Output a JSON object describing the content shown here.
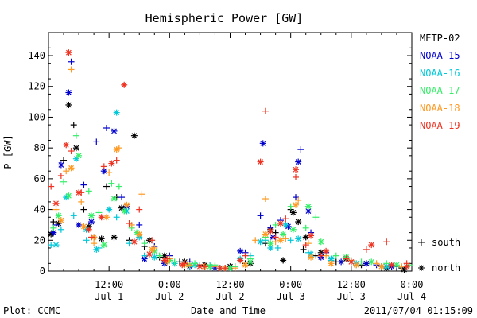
{
  "chart_data": {
    "type": "scatter",
    "title": "Hemispheric Power [GW]",
    "ylabel": "P [GW]",
    "xlabel": "Date and Time",
    "ylim": [
      0,
      155
    ],
    "xlim": [
      "2011-07-01T00:00",
      "2011-07-04T00:00"
    ],
    "yticks": [
      0,
      20,
      40,
      60,
      80,
      100,
      120,
      140
    ],
    "xticks": [
      {
        "time": "12:00",
        "date": "Jul 1"
      },
      {
        "time": "0:00",
        "date": "Jul 2"
      },
      {
        "time": "12:00",
        "date": "Jul 2"
      },
      {
        "time": "0:00",
        "date": "Jul 3"
      },
      {
        "time": "12:00",
        "date": "Jul 3"
      },
      {
        "time": "0:00",
        "date": "Jul 4"
      }
    ],
    "legend": {
      "placement": "right"
    },
    "hemisphere_legend": [
      {
        "symbol": "+",
        "label": "south"
      },
      {
        "symbol": "*",
        "label": "north"
      }
    ],
    "series": [
      {
        "name": "METP-02",
        "color": "#000000",
        "south": [
          [
            2,
            32
          ],
          [
            6,
            72
          ],
          [
            10,
            95
          ],
          [
            14,
            40
          ],
          [
            18,
            22
          ],
          [
            23,
            55
          ],
          [
            27,
            48
          ],
          [
            32,
            20
          ],
          [
            38,
            16
          ],
          [
            44,
            9
          ],
          [
            52,
            6
          ],
          [
            60,
            4
          ],
          [
            70,
            2
          ],
          [
            78,
            5
          ],
          [
            86,
            18
          ],
          [
            90,
            25
          ],
          [
            96,
            40
          ],
          [
            101,
            14
          ],
          [
            106,
            10
          ],
          [
            114,
            6
          ],
          [
            124,
            4
          ],
          [
            132,
            3
          ],
          [
            140,
            2
          ]
        ],
        "north": [
          [
            1,
            24
          ],
          [
            4,
            31
          ],
          [
            8,
            108
          ],
          [
            11,
            80
          ],
          [
            16,
            29
          ],
          [
            21,
            21
          ],
          [
            26,
            22
          ],
          [
            29,
            41
          ],
          [
            34,
            88
          ],
          [
            40,
            20
          ],
          [
            46,
            10
          ],
          [
            54,
            6
          ],
          [
            62,
            4
          ],
          [
            72,
            3
          ],
          [
            80,
            5
          ],
          [
            88,
            27
          ],
          [
            93,
            7
          ],
          [
            97,
            38
          ],
          [
            99,
            32
          ],
          [
            102,
            22
          ],
          [
            108,
            12
          ],
          [
            118,
            8
          ],
          [
            126,
            5
          ],
          [
            134,
            2
          ],
          [
            141,
            1
          ]
        ]
      },
      {
        "name": "NOAA-15",
        "color": "#0000cc",
        "south": [
          [
            3,
            30
          ],
          [
            9,
            136
          ],
          [
            14,
            56
          ],
          [
            19,
            84
          ],
          [
            23,
            93
          ],
          [
            29,
            48
          ],
          [
            36,
            30
          ],
          [
            42,
            16
          ],
          [
            48,
            10
          ],
          [
            56,
            6
          ],
          [
            64,
            3
          ],
          [
            72,
            2
          ],
          [
            78,
            12
          ],
          [
            84,
            36
          ],
          [
            88,
            28
          ],
          [
            92,
            33
          ],
          [
            98,
            48
          ],
          [
            100,
            79
          ],
          [
            104,
            25
          ],
          [
            110,
            12
          ],
          [
            120,
            6
          ],
          [
            130,
            4
          ],
          [
            138,
            3
          ]
        ],
        "north": [
          [
            2,
            25
          ],
          [
            5,
            69
          ],
          [
            8,
            116
          ],
          [
            12,
            30
          ],
          [
            17,
            32
          ],
          [
            22,
            65
          ],
          [
            26,
            91
          ],
          [
            31,
            42
          ],
          [
            38,
            8
          ],
          [
            46,
            5
          ],
          [
            56,
            3
          ],
          [
            66,
            2
          ],
          [
            76,
            13
          ],
          [
            85,
            83
          ],
          [
            89,
            22
          ],
          [
            95,
            29
          ],
          [
            99,
            71
          ],
          [
            103,
            39
          ],
          [
            108,
            9
          ],
          [
            116,
            6
          ],
          [
            126,
            5
          ],
          [
            136,
            3
          ]
        ]
      },
      {
        "name": "NOAA-16",
        "color": "#00c8d8",
        "south": [
          [
            1,
            17
          ],
          [
            5,
            27
          ],
          [
            10,
            36
          ],
          [
            15,
            20
          ],
          [
            20,
            15
          ],
          [
            27,
            35
          ],
          [
            32,
            18
          ],
          [
            38,
            10
          ],
          [
            46,
            6
          ],
          [
            56,
            3
          ],
          [
            64,
            4
          ],
          [
            74,
            3
          ],
          [
            80,
            10
          ],
          [
            86,
            20
          ],
          [
            91,
            15
          ],
          [
            96,
            20
          ],
          [
            103,
            12
          ],
          [
            112,
            7
          ],
          [
            122,
            4
          ],
          [
            132,
            3
          ],
          [
            142,
            3
          ]
        ],
        "north": [
          [
            3,
            17
          ],
          [
            7,
            48
          ],
          [
            11,
            73
          ],
          [
            15,
            27
          ],
          [
            19,
            14
          ],
          [
            24,
            40
          ],
          [
            27,
            103
          ],
          [
            31,
            39
          ],
          [
            36,
            22
          ],
          [
            42,
            9
          ],
          [
            50,
            5
          ],
          [
            58,
            4
          ],
          [
            68,
            2
          ],
          [
            76,
            8
          ],
          [
            84,
            19
          ],
          [
            88,
            15
          ],
          [
            94,
            30
          ],
          [
            99,
            21
          ],
          [
            104,
            11
          ],
          [
            112,
            8
          ],
          [
            122,
            5
          ],
          [
            134,
            3
          ]
        ]
      },
      {
        "name": "NOAA-17",
        "color": "#33ee66",
        "south": [
          [
            2,
            28
          ],
          [
            6,
            58
          ],
          [
            11,
            88
          ],
          [
            16,
            52
          ],
          [
            20,
            38
          ],
          [
            25,
            57
          ],
          [
            28,
            55
          ],
          [
            33,
            28
          ],
          [
            38,
            18
          ],
          [
            44,
            10
          ],
          [
            50,
            6
          ],
          [
            58,
            5
          ],
          [
            66,
            4
          ],
          [
            74,
            3
          ],
          [
            80,
            8
          ],
          [
            86,
            22
          ],
          [
            90,
            30
          ],
          [
            96,
            42
          ],
          [
            102,
            28
          ],
          [
            106,
            35
          ],
          [
            114,
            10
          ],
          [
            124,
            6
          ],
          [
            134,
            5
          ],
          [
            143,
            4
          ]
        ],
        "north": [
          [
            4,
            36
          ],
          [
            8,
            49
          ],
          [
            12,
            75
          ],
          [
            17,
            36
          ],
          [
            22,
            17
          ],
          [
            26,
            47
          ],
          [
            30,
            39
          ],
          [
            35,
            25
          ],
          [
            42,
            13
          ],
          [
            48,
            7
          ],
          [
            56,
            4
          ],
          [
            64,
            3
          ],
          [
            72,
            2
          ],
          [
            80,
            6
          ],
          [
            88,
            18
          ],
          [
            93,
            24
          ],
          [
            97,
            27
          ],
          [
            103,
            42
          ],
          [
            108,
            19
          ],
          [
            118,
            9
          ],
          [
            128,
            6
          ],
          [
            138,
            4
          ]
        ]
      },
      {
        "name": "NOAA-18",
        "color": "#ff9922",
        "south": [
          [
            3,
            40
          ],
          [
            7,
            65
          ],
          [
            9,
            131
          ],
          [
            13,
            45
          ],
          [
            18,
            18
          ],
          [
            24,
            64
          ],
          [
            28,
            80
          ],
          [
            33,
            30
          ],
          [
            37,
            50
          ],
          [
            42,
            15
          ],
          [
            48,
            8
          ],
          [
            56,
            4
          ],
          [
            66,
            3
          ],
          [
            74,
            2
          ],
          [
            82,
            20
          ],
          [
            86,
            47
          ],
          [
            90,
            19
          ],
          [
            94,
            21
          ],
          [
            99,
            46
          ],
          [
            103,
            18
          ],
          [
            110,
            10
          ],
          [
            120,
            7
          ],
          [
            130,
            5
          ],
          [
            140,
            3
          ]
        ],
        "north": [
          [
            5,
            33
          ],
          [
            9,
            67
          ],
          [
            14,
            29
          ],
          [
            18,
            22
          ],
          [
            23,
            35
          ],
          [
            27,
            79
          ],
          [
            31,
            43
          ],
          [
            36,
            24
          ],
          [
            41,
            14
          ],
          [
            47,
            6
          ],
          [
            54,
            4
          ],
          [
            62,
            3
          ],
          [
            70,
            2
          ],
          [
            78,
            4
          ],
          [
            86,
            24
          ],
          [
            92,
            20
          ],
          [
            98,
            43
          ],
          [
            104,
            9
          ],
          [
            112,
            5
          ],
          [
            122,
            4
          ],
          [
            132,
            3
          ]
        ]
      },
      {
        "name": "NOAA-19",
        "color": "#ee3322",
        "south": [
          [
            1,
            55
          ],
          [
            5,
            62
          ],
          [
            9,
            78
          ],
          [
            13,
            51
          ],
          [
            17,
            22
          ],
          [
            22,
            68
          ],
          [
            27,
            72
          ],
          [
            32,
            31
          ],
          [
            36,
            40
          ],
          [
            41,
            20
          ],
          [
            47,
            8
          ],
          [
            54,
            5
          ],
          [
            62,
            3
          ],
          [
            70,
            2
          ],
          [
            78,
            10
          ],
          [
            86,
            104
          ],
          [
            90,
            22
          ],
          [
            94,
            34
          ],
          [
            98,
            61
          ],
          [
            102,
            17
          ],
          [
            108,
            10
          ],
          [
            118,
            8
          ],
          [
            126,
            14
          ],
          [
            134,
            19
          ],
          [
            142,
            5
          ]
        ],
        "north": [
          [
            3,
            44
          ],
          [
            7,
            82
          ],
          [
            8,
            142
          ],
          [
            12,
            51
          ],
          [
            16,
            27
          ],
          [
            21,
            35
          ],
          [
            25,
            70
          ],
          [
            30,
            121
          ],
          [
            34,
            19
          ],
          [
            40,
            11
          ],
          [
            46,
            7
          ],
          [
            53,
            4
          ],
          [
            60,
            3
          ],
          [
            68,
            2
          ],
          [
            76,
            7
          ],
          [
            84,
            71
          ],
          [
            88,
            26
          ],
          [
            92,
            31
          ],
          [
            98,
            66
          ],
          [
            104,
            23
          ],
          [
            110,
            13
          ],
          [
            120,
            6
          ],
          [
            128,
            17
          ],
          [
            136,
            4
          ],
          [
            142,
            3
          ]
        ]
      }
    ]
  },
  "footer": {
    "plot_credit": "Plot: CCMC",
    "timestamp": "2011/07/04 01:15:09"
  }
}
